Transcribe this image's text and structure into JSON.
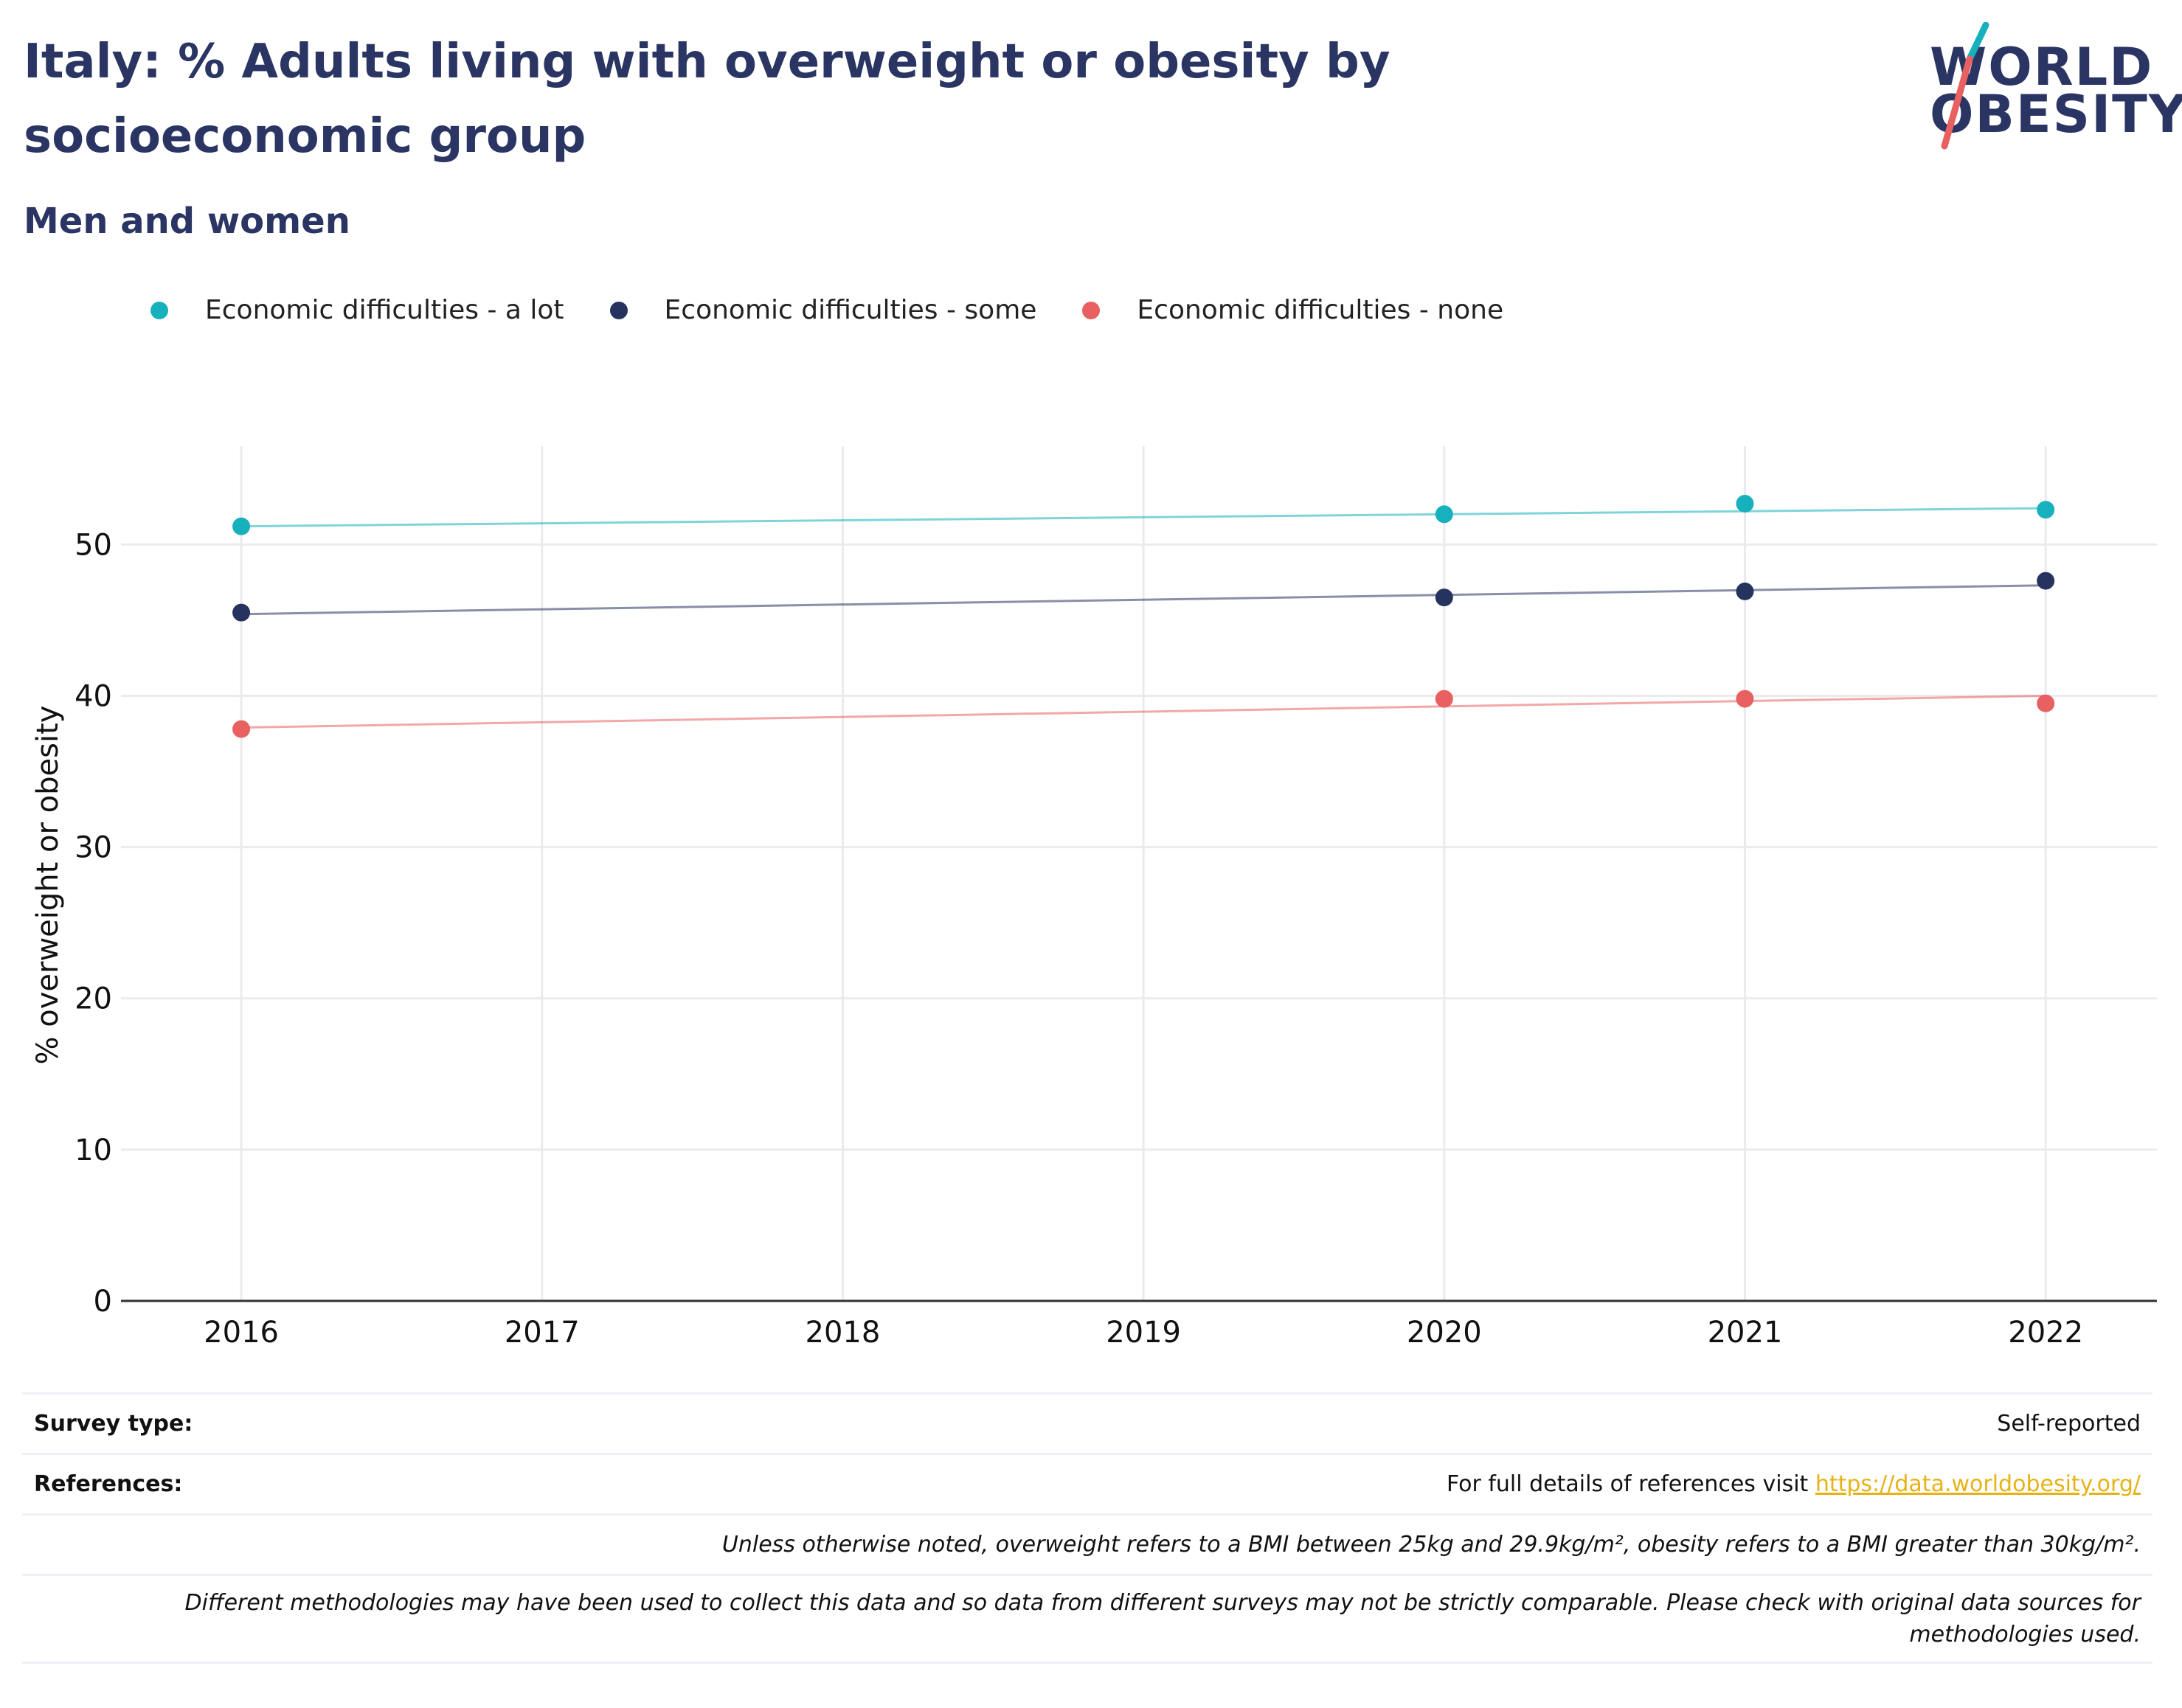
{
  "header": {
    "title": "Italy: % Adults living with overweight or obesity by socioeconomic group",
    "subtitle": "Men and women",
    "logo_line1": "WORLD",
    "logo_line2": "OBESITY"
  },
  "colors": {
    "a_lot": "#16b1bc",
    "some": "#27335f",
    "none": "#e8605f",
    "title": "#2a3563",
    "link": "#e6b317",
    "grid": "#ebebef"
  },
  "chart_data": {
    "type": "scatter",
    "trendlines": true,
    "title": "",
    "xlabel": "",
    "ylabel": "% overweight or obesity",
    "xlim": [
      2015.6,
      2022.37
    ],
    "ylim": [
      0,
      56.5
    ],
    "x_ticks": [
      2016,
      2017,
      2018,
      2019,
      2020,
      2021,
      2022
    ],
    "y_ticks": [
      0,
      10,
      20,
      30,
      40,
      50
    ],
    "grid": true,
    "legend_position": "top-left",
    "series": [
      {
        "name": "Economic difficulties - a lot",
        "color": "#16b1bc",
        "x": [
          2016,
          2020,
          2021,
          2022
        ],
        "y": [
          51.2,
          52.0,
          52.7,
          52.3
        ],
        "trend": [
          51.2,
          52.4
        ]
      },
      {
        "name": "Economic difficulties - some",
        "color": "#27335f",
        "x": [
          2016,
          2020,
          2021,
          2022
        ],
        "y": [
          45.5,
          46.5,
          46.9,
          47.6
        ],
        "trend": [
          45.4,
          47.3
        ]
      },
      {
        "name": "Economic difficulties - none",
        "color": "#e8605f",
        "x": [
          2016,
          2020,
          2021,
          2022
        ],
        "y": [
          37.8,
          39.8,
          39.8,
          39.5
        ],
        "trend": [
          37.9,
          40.0
        ]
      }
    ]
  },
  "footer": {
    "survey_label": "Survey type:",
    "survey_value": "Self-reported",
    "references_label": "References:",
    "references_text": "For full details of references visit",
    "references_link": "https://data.worldobesity.org/",
    "note1": "Unless otherwise noted, overweight refers to a BMI between 25kg and 29.9kg/m², obesity refers to a BMI greater than 30kg/m².",
    "note2": "Different methodologies may have been used to collect this data and so data from different surveys may not be strictly comparable. Please check with original data sources for methodologies used."
  }
}
